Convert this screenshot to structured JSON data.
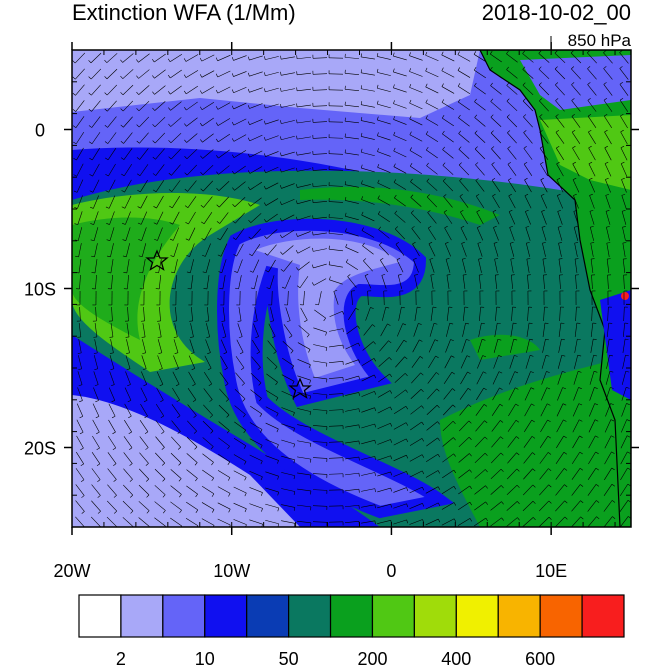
{
  "header": {
    "title": "Extinction WFA (1/Mm)",
    "time": "2018-10-02_00",
    "level": "850 hPa"
  },
  "map": {
    "lon_range": [
      -20,
      15
    ],
    "lat_range": [
      -25,
      5
    ],
    "lon_ticks": [
      {
        "value": -20,
        "label": "20W"
      },
      {
        "value": -10,
        "label": "10W"
      },
      0,
      {
        "value": 10,
        "label": "10E"
      }
    ],
    "lat_ticks": [
      0,
      {
        "value": -10,
        "label": "10S"
      },
      {
        "value": -20,
        "label": "20S"
      }
    ]
  },
  "colorbar": {
    "colors": [
      "#ffffff",
      "#a8a8f8",
      "#6464f8",
      "#1010f0",
      "#0a3cb4",
      "#0a7860",
      "#0aa01e",
      "#50c814",
      "#a0dc0a",
      "#f0f000",
      "#f8b400",
      "#f86400",
      "#f81e1e"
    ],
    "labels": [
      "2",
      "10",
      "50",
      "200",
      "400",
      "600"
    ]
  }
}
